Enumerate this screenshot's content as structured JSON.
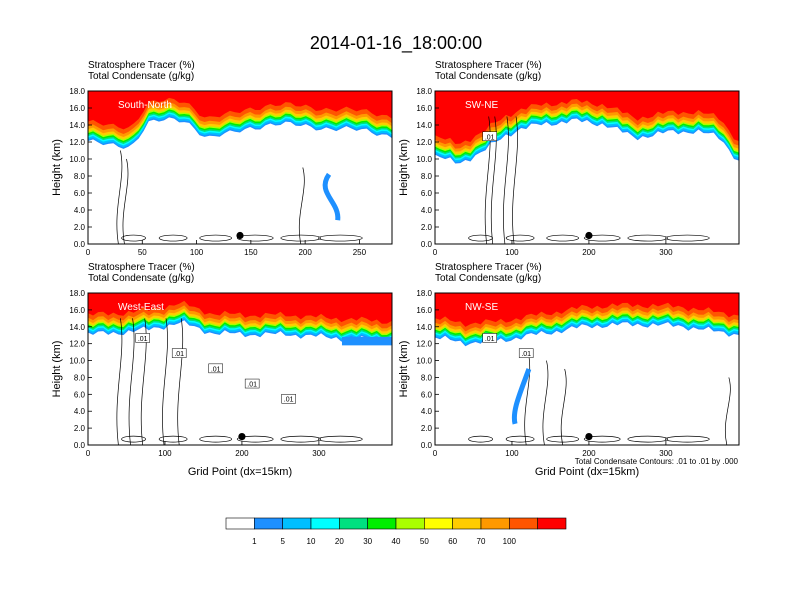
{
  "figure": {
    "title": "2014-01-16_18:00:00",
    "contour_note": "Total Condensate Contours: .01 to .01 by .000"
  },
  "chart_data": [
    {
      "type": "heatmap",
      "section": "South-North",
      "header_line1": "Stratosphere Tracer   (%)",
      "header_line2": "Total Condensate   (g/kg)",
      "ylabel": "Height (km)",
      "xlabel": "",
      "xlim": [
        0,
        280
      ],
      "ylim": [
        0,
        18
      ],
      "xticks": [
        0,
        50,
        100,
        150,
        200,
        250
      ],
      "yticks": [
        0.0,
        2.0,
        4.0,
        6.0,
        8.0,
        10.0,
        12.0,
        14.0,
        16.0,
        18.0
      ],
      "marker_x": 140,
      "marker_y": 1.0,
      "contour_labels": [],
      "tropopause_km": [
        [
          0,
          14.4
        ],
        [
          20,
          13.8
        ],
        [
          40,
          13.8
        ],
        [
          55,
          16.6
        ],
        [
          70,
          16.8
        ],
        [
          90,
          16.8
        ],
        [
          110,
          14.8
        ],
        [
          130,
          15.2
        ],
        [
          150,
          16.0
        ],
        [
          170,
          16.4
        ],
        [
          200,
          16.2
        ],
        [
          230,
          15.8
        ],
        [
          260,
          15.6
        ],
        [
          280,
          15.0
        ]
      ]
    },
    {
      "type": "heatmap",
      "section": "SW-NE",
      "header_line1": "Stratosphere Tracer   (%)",
      "header_line2": "Total Condensate   (g/kg)",
      "ylabel": "Height (km)",
      "xlabel": "",
      "xlim": [
        0,
        395
      ],
      "ylim": [
        0,
        18
      ],
      "xticks": [
        0,
        100,
        200,
        300
      ],
      "yticks": [
        0.0,
        2.0,
        4.0,
        6.0,
        8.0,
        10.0,
        12.0,
        14.0,
        16.0,
        18.0
      ],
      "marker_x": 200,
      "marker_y": 1.0,
      "contour_labels": [
        ".01"
      ],
      "tropopause_km": [
        [
          0,
          12.6
        ],
        [
          30,
          11.8
        ],
        [
          60,
          13.0
        ],
        [
          90,
          15.0
        ],
        [
          110,
          15.8
        ],
        [
          140,
          16.4
        ],
        [
          180,
          16.8
        ],
        [
          220,
          16.4
        ],
        [
          260,
          14.8
        ],
        [
          300,
          15.4
        ],
        [
          340,
          15.6
        ],
        [
          370,
          14.8
        ],
        [
          395,
          12.0
        ]
      ]
    },
    {
      "type": "heatmap",
      "section": "West-East",
      "header_line1": "Stratosphere Tracer   (%)",
      "header_line2": "Total Condensate   (g/kg)",
      "ylabel": "Height (km)",
      "xlabel": "Grid Point (dx=15km)",
      "xlim": [
        0,
        395
      ],
      "ylim": [
        0,
        18
      ],
      "xticks": [
        0,
        100,
        200,
        300
      ],
      "yticks": [
        0.0,
        2.0,
        4.0,
        6.0,
        8.0,
        10.0,
        12.0,
        14.0,
        16.0,
        18.0
      ],
      "marker_x": 200,
      "marker_y": 1.0,
      "contour_labels": [
        ".01",
        ".01",
        ".01",
        ".01",
        ".01"
      ],
      "tropopause_km": [
        [
          0,
          15.4
        ],
        [
          40,
          15.6
        ],
        [
          80,
          16.0
        ],
        [
          120,
          16.8
        ],
        [
          160,
          15.6
        ],
        [
          200,
          15.4
        ],
        [
          260,
          15.4
        ],
        [
          320,
          15.0
        ],
        [
          360,
          14.8
        ],
        [
          395,
          14.6
        ]
      ]
    },
    {
      "type": "heatmap",
      "section": "NW-SE",
      "header_line1": "Stratosphere Tracer   (%)",
      "header_line2": "Total Condensate   (g/kg)",
      "ylabel": "Height (km)",
      "xlabel": "Grid Point (dx=15km)",
      "xlim": [
        0,
        395
      ],
      "ylim": [
        0,
        18
      ],
      "xticks": [
        0,
        100,
        200,
        300
      ],
      "yticks": [
        0.0,
        2.0,
        4.0,
        6.0,
        8.0,
        10.0,
        12.0,
        14.0,
        16.0,
        18.0
      ],
      "marker_x": 200,
      "marker_y": 1.0,
      "contour_labels": [
        ".01",
        ".01"
      ],
      "tropopause_km": [
        [
          0,
          15.0
        ],
        [
          40,
          14.4
        ],
        [
          80,
          14.6
        ],
        [
          120,
          15.2
        ],
        [
          160,
          15.8
        ],
        [
          200,
          16.4
        ],
        [
          260,
          16.6
        ],
        [
          320,
          16.4
        ],
        [
          360,
          15.8
        ],
        [
          395,
          15.4
        ]
      ]
    }
  ],
  "colorbar": {
    "labels": [
      "1",
      "5",
      "10",
      "20",
      "30",
      "40",
      "50",
      "60",
      "70",
      "100"
    ],
    "colors": [
      "#ffffff",
      "#1e90ff",
      "#00bfff",
      "#00ffff",
      "#00e080",
      "#00ee00",
      "#aaff00",
      "#ffff00",
      "#ffcc00",
      "#ff9900",
      "#ff5500",
      "#ff0000"
    ]
  }
}
